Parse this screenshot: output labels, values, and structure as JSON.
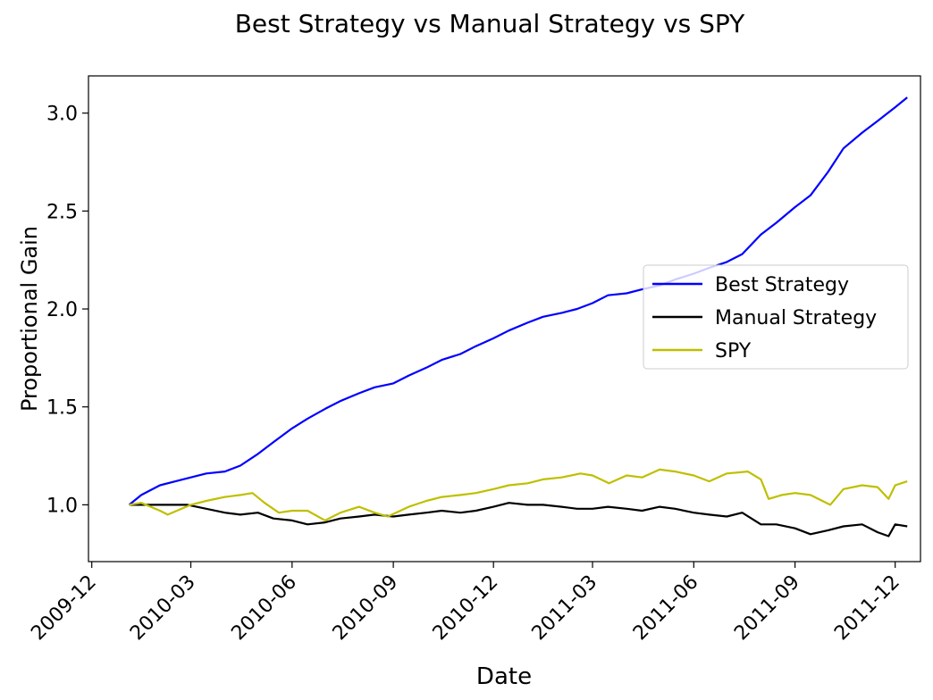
{
  "chart_data": {
    "type": "line",
    "title": "Best Strategy vs Manual Strategy vs SPY",
    "xlabel": "Date",
    "ylabel": "Proportional Gain",
    "x_ticks": [
      "2009-12",
      "2010-03",
      "2010-06",
      "2010-09",
      "2010-12",
      "2011-03",
      "2011-06",
      "2011-09",
      "2011-12"
    ],
    "y_ticks": [
      1.0,
      1.5,
      2.0,
      2.5,
      3.0
    ],
    "xlim": [
      "2009-11-28",
      "2011-12-24"
    ],
    "ylim": [
      0.71,
      3.19
    ],
    "grid": false,
    "legend": {
      "position": "center-right",
      "entries": [
        "Best Strategy",
        "Manual Strategy",
        "SPY"
      ]
    },
    "series": [
      {
        "name": "Best Strategy",
        "color": "#0000ff",
        "points": [
          [
            "2010-01-04",
            1.0
          ],
          [
            "2010-01-15",
            1.05
          ],
          [
            "2010-02-01",
            1.1
          ],
          [
            "2010-02-15",
            1.12
          ],
          [
            "2010-03-01",
            1.14
          ],
          [
            "2010-03-15",
            1.16
          ],
          [
            "2010-04-01",
            1.17
          ],
          [
            "2010-04-15",
            1.2
          ],
          [
            "2010-05-01",
            1.26
          ],
          [
            "2010-05-15",
            1.32
          ],
          [
            "2010-06-01",
            1.39
          ],
          [
            "2010-06-15",
            1.44
          ],
          [
            "2010-07-01",
            1.49
          ],
          [
            "2010-07-15",
            1.53
          ],
          [
            "2010-08-01",
            1.57
          ],
          [
            "2010-08-15",
            1.6
          ],
          [
            "2010-09-01",
            1.62
          ],
          [
            "2010-09-15",
            1.66
          ],
          [
            "2010-10-01",
            1.7
          ],
          [
            "2010-10-15",
            1.74
          ],
          [
            "2010-11-01",
            1.77
          ],
          [
            "2010-11-15",
            1.81
          ],
          [
            "2010-12-01",
            1.85
          ],
          [
            "2010-12-15",
            1.89
          ],
          [
            "2011-01-01",
            1.93
          ],
          [
            "2011-01-15",
            1.96
          ],
          [
            "2011-02-01",
            1.98
          ],
          [
            "2011-02-15",
            2.0
          ],
          [
            "2011-03-01",
            2.03
          ],
          [
            "2011-03-15",
            2.07
          ],
          [
            "2011-04-01",
            2.08
          ],
          [
            "2011-04-15",
            2.1
          ],
          [
            "2011-05-01",
            2.12
          ],
          [
            "2011-05-15",
            2.15
          ],
          [
            "2011-06-01",
            2.18
          ],
          [
            "2011-06-15",
            2.21
          ],
          [
            "2011-07-01",
            2.24
          ],
          [
            "2011-07-15",
            2.28
          ],
          [
            "2011-08-01",
            2.38
          ],
          [
            "2011-08-15",
            2.44
          ],
          [
            "2011-09-01",
            2.52
          ],
          [
            "2011-09-15",
            2.58
          ],
          [
            "2011-10-01",
            2.7
          ],
          [
            "2011-10-15",
            2.82
          ],
          [
            "2011-11-01",
            2.9
          ],
          [
            "2011-11-15",
            2.96
          ],
          [
            "2011-12-01",
            3.03
          ],
          [
            "2011-12-12",
            3.08
          ]
        ]
      },
      {
        "name": "Manual Strategy",
        "color": "#000000",
        "points": [
          [
            "2010-01-04",
            1.0
          ],
          [
            "2010-02-01",
            1.0
          ],
          [
            "2010-02-26",
            1.0
          ],
          [
            "2010-03-15",
            0.98
          ],
          [
            "2010-04-01",
            0.96
          ],
          [
            "2010-04-15",
            0.95
          ],
          [
            "2010-05-01",
            0.96
          ],
          [
            "2010-05-15",
            0.93
          ],
          [
            "2010-06-01",
            0.92
          ],
          [
            "2010-06-15",
            0.9
          ],
          [
            "2010-07-01",
            0.91
          ],
          [
            "2010-07-15",
            0.93
          ],
          [
            "2010-08-01",
            0.94
          ],
          [
            "2010-08-15",
            0.95
          ],
          [
            "2010-09-01",
            0.94
          ],
          [
            "2010-09-15",
            0.95
          ],
          [
            "2010-10-01",
            0.96
          ],
          [
            "2010-10-15",
            0.97
          ],
          [
            "2010-11-01",
            0.96
          ],
          [
            "2010-11-15",
            0.97
          ],
          [
            "2010-12-01",
            0.99
          ],
          [
            "2010-12-15",
            1.01
          ],
          [
            "2011-01-01",
            1.0
          ],
          [
            "2011-01-15",
            1.0
          ],
          [
            "2011-02-01",
            0.99
          ],
          [
            "2011-02-15",
            0.98
          ],
          [
            "2011-03-01",
            0.98
          ],
          [
            "2011-03-15",
            0.99
          ],
          [
            "2011-04-01",
            0.98
          ],
          [
            "2011-04-15",
            0.97
          ],
          [
            "2011-05-01",
            0.99
          ],
          [
            "2011-05-15",
            0.98
          ],
          [
            "2011-06-01",
            0.96
          ],
          [
            "2011-06-15",
            0.95
          ],
          [
            "2011-07-01",
            0.94
          ],
          [
            "2011-07-15",
            0.96
          ],
          [
            "2011-08-01",
            0.9
          ],
          [
            "2011-08-15",
            0.9
          ],
          [
            "2011-09-01",
            0.88
          ],
          [
            "2011-09-15",
            0.85
          ],
          [
            "2011-10-01",
            0.87
          ],
          [
            "2011-10-15",
            0.89
          ],
          [
            "2011-11-01",
            0.9
          ],
          [
            "2011-11-15",
            0.86
          ],
          [
            "2011-11-25",
            0.84
          ],
          [
            "2011-12-01",
            0.9
          ],
          [
            "2011-12-12",
            0.89
          ]
        ]
      },
      {
        "name": "SPY",
        "color": "#bfbf00",
        "points": [
          [
            "2010-01-04",
            1.0
          ],
          [
            "2010-01-15",
            1.01
          ],
          [
            "2010-02-01",
            0.97
          ],
          [
            "2010-02-08",
            0.95
          ],
          [
            "2010-03-01",
            1.0
          ],
          [
            "2010-03-15",
            1.02
          ],
          [
            "2010-04-01",
            1.04
          ],
          [
            "2010-04-15",
            1.05
          ],
          [
            "2010-04-26",
            1.06
          ],
          [
            "2010-05-07",
            1.01
          ],
          [
            "2010-05-20",
            0.96
          ],
          [
            "2010-06-01",
            0.97
          ],
          [
            "2010-06-15",
            0.97
          ],
          [
            "2010-07-01",
            0.92
          ],
          [
            "2010-07-15",
            0.96
          ],
          [
            "2010-08-01",
            0.99
          ],
          [
            "2010-08-15",
            0.96
          ],
          [
            "2010-08-27",
            0.94
          ],
          [
            "2010-09-15",
            0.99
          ],
          [
            "2010-10-01",
            1.02
          ],
          [
            "2010-10-15",
            1.04
          ],
          [
            "2010-11-01",
            1.05
          ],
          [
            "2010-11-15",
            1.06
          ],
          [
            "2010-12-01",
            1.08
          ],
          [
            "2010-12-15",
            1.1
          ],
          [
            "2011-01-01",
            1.11
          ],
          [
            "2011-01-15",
            1.13
          ],
          [
            "2011-02-01",
            1.14
          ],
          [
            "2011-02-18",
            1.16
          ],
          [
            "2011-03-01",
            1.15
          ],
          [
            "2011-03-16",
            1.11
          ],
          [
            "2011-04-01",
            1.15
          ],
          [
            "2011-04-15",
            1.14
          ],
          [
            "2011-05-01",
            1.18
          ],
          [
            "2011-05-15",
            1.17
          ],
          [
            "2011-06-01",
            1.15
          ],
          [
            "2011-06-15",
            1.12
          ],
          [
            "2011-07-01",
            1.16
          ],
          [
            "2011-07-20",
            1.17
          ],
          [
            "2011-08-01",
            1.13
          ],
          [
            "2011-08-08",
            1.03
          ],
          [
            "2011-08-20",
            1.05
          ],
          [
            "2011-09-01",
            1.06
          ],
          [
            "2011-09-15",
            1.05
          ],
          [
            "2011-10-03",
            1.0
          ],
          [
            "2011-10-15",
            1.08
          ],
          [
            "2011-11-01",
            1.1
          ],
          [
            "2011-11-15",
            1.09
          ],
          [
            "2011-11-25",
            1.03
          ],
          [
            "2011-12-01",
            1.1
          ],
          [
            "2011-12-12",
            1.12
          ]
        ]
      }
    ]
  }
}
